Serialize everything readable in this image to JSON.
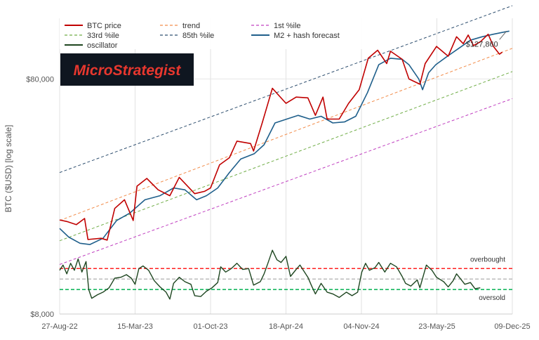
{
  "chart_data": {
    "type": "line",
    "title": "",
    "ylabel": "BTC ($USD) [log scale]",
    "xlabel": "",
    "y_scale": "log",
    "ylim": [
      8000,
      145000
    ],
    "xlim": [
      "2022-08-27",
      "2025-12-09"
    ],
    "x_ticks": [
      "27-Aug-22",
      "15-Mar-23",
      "01-Oct-23",
      "18-Apr-24",
      "04-Nov-24",
      "23-May-25",
      "09-Dec-25"
    ],
    "y_ticks": [
      {
        "value": 8000,
        "label": "$8,000"
      },
      {
        "value": 80000,
        "label": "$80,000"
      }
    ],
    "grid": "vertical",
    "legend_position": "top",
    "colors": {
      "btc_price": "#c00000",
      "trend": "#f28c4a",
      "p1": "#c040c0",
      "p33": "#70ad47",
      "p85": "#2f4f6f",
      "forecast": "#1f5f8b",
      "oscillator": "#1e4620",
      "overbought": "#ff2020",
      "oversold": "#00b050",
      "midline": "#bbbbbb"
    },
    "series": [
      {
        "name": "BTC price",
        "style": "solid",
        "points": [
          [
            "2022-08-27",
            20100
          ],
          [
            "2022-09-15",
            19800
          ],
          [
            "2022-10-10",
            19200
          ],
          [
            "2022-11-01",
            20400
          ],
          [
            "2022-11-10",
            16600
          ],
          [
            "2022-12-15",
            16800
          ],
          [
            "2022-12-31",
            16500
          ],
          [
            "2023-01-20",
            22500
          ],
          [
            "2023-02-15",
            24500
          ],
          [
            "2023-03-10",
            20000
          ],
          [
            "2023-03-20",
            28000
          ],
          [
            "2023-04-15",
            30200
          ],
          [
            "2023-05-15",
            27000
          ],
          [
            "2023-06-15",
            25500
          ],
          [
            "2023-07-10",
            30500
          ],
          [
            "2023-08-20",
            26000
          ],
          [
            "2023-09-15",
            26600
          ],
          [
            "2023-10-01",
            27500
          ],
          [
            "2023-10-25",
            34500
          ],
          [
            "2023-11-20",
            37000
          ],
          [
            "2023-12-10",
            43500
          ],
          [
            "2024-01-15",
            42500
          ],
          [
            "2024-01-23",
            39500
          ],
          [
            "2024-02-15",
            52000
          ],
          [
            "2024-03-13",
            73000
          ],
          [
            "2024-04-18",
            63000
          ],
          [
            "2024-05-15",
            67000
          ],
          [
            "2024-06-15",
            66500
          ],
          [
            "2024-07-05",
            56000
          ],
          [
            "2024-07-25",
            67000
          ],
          [
            "2024-08-05",
            54000
          ],
          [
            "2024-09-06",
            54000
          ],
          [
            "2024-10-01",
            63000
          ],
          [
            "2024-10-29",
            72000
          ],
          [
            "2024-11-22",
            98000
          ],
          [
            "2024-12-17",
            106000
          ],
          [
            "2025-01-10",
            93000
          ],
          [
            "2025-01-20",
            105000
          ],
          [
            "2025-02-20",
            97000
          ],
          [
            "2025-03-10",
            80000
          ],
          [
            "2025-04-08",
            76000
          ],
          [
            "2025-04-22",
            93000
          ],
          [
            "2025-05-22",
            110000
          ],
          [
            "2025-06-22",
            100000
          ],
          [
            "2025-07-14",
            121000
          ],
          [
            "2025-08-01",
            113000
          ],
          [
            "2025-08-14",
            123000
          ],
          [
            "2025-08-28",
            111000
          ],
          [
            "2025-09-15",
            115000
          ],
          [
            "2025-10-06",
            124000
          ],
          [
            "2025-10-20",
            110000
          ],
          [
            "2025-11-05",
            102000
          ],
          [
            "2025-11-12",
            104000
          ]
        ]
      },
      {
        "name": "trend",
        "style": "dashed",
        "points": [
          [
            "2022-08-27",
            20000
          ],
          [
            "2025-12-09",
            108000
          ]
        ]
      },
      {
        "name": "1st %ile",
        "style": "dashed",
        "points": [
          [
            "2022-08-27",
            13000
          ],
          [
            "2025-12-09",
            66000
          ]
        ]
      },
      {
        "name": "33rd %ile",
        "style": "dashed",
        "points": [
          [
            "2022-08-27",
            16400
          ],
          [
            "2025-12-09",
            86000
          ]
        ]
      },
      {
        "name": "85th %ile",
        "style": "dashed",
        "points": [
          [
            "2022-08-27",
            32000
          ],
          [
            "2025-12-09",
            164000
          ]
        ]
      },
      {
        "name": "M2 + hash forecast",
        "style": "solid",
        "points": [
          [
            "2022-08-27",
            18500
          ],
          [
            "2022-09-20",
            17000
          ],
          [
            "2022-10-20",
            16000
          ],
          [
            "2022-11-15",
            15800
          ],
          [
            "2022-12-20",
            16800
          ],
          [
            "2023-01-25",
            20000
          ],
          [
            "2023-03-01",
            21500
          ],
          [
            "2023-04-10",
            24500
          ],
          [
            "2023-05-20",
            25500
          ],
          [
            "2023-06-25",
            27500
          ],
          [
            "2023-07-25",
            27000
          ],
          [
            "2023-08-25",
            24500
          ],
          [
            "2023-09-20",
            25500
          ],
          [
            "2023-10-20",
            27500
          ],
          [
            "2023-11-20",
            32000
          ],
          [
            "2023-12-20",
            36500
          ],
          [
            "2024-01-25",
            38500
          ],
          [
            "2024-02-20",
            42000
          ],
          [
            "2024-03-20",
            52000
          ],
          [
            "2024-04-20",
            54000
          ],
          [
            "2024-05-20",
            56000
          ],
          [
            "2024-06-20",
            54000
          ],
          [
            "2024-07-20",
            55500
          ],
          [
            "2024-08-20",
            52000
          ],
          [
            "2024-09-20",
            52500
          ],
          [
            "2024-10-20",
            55500
          ],
          [
            "2024-11-20",
            70000
          ],
          [
            "2024-12-20",
            92000
          ],
          [
            "2025-01-20",
            98000
          ],
          [
            "2025-02-20",
            97000
          ],
          [
            "2025-03-10",
            92000
          ],
          [
            "2025-04-05",
            80000
          ],
          [
            "2025-04-15",
            72000
          ],
          [
            "2025-05-01",
            85000
          ],
          [
            "2025-05-20",
            92000
          ],
          [
            "2025-06-20",
            100000
          ],
          [
            "2025-07-20",
            108000
          ],
          [
            "2025-08-20",
            117000
          ],
          [
            "2025-09-20",
            121000
          ],
          [
            "2025-10-20",
            124000
          ],
          [
            "2025-11-20",
            127000
          ],
          [
            "2025-12-01",
            127860
          ]
        ]
      }
    ],
    "oscillator": {
      "name": "oscillator",
      "y_ticks": [
        -3,
        3
      ],
      "overbought_level": 1.2,
      "oversold_level": -1.2,
      "midline_level": 0,
      "ylim": [
        -4.0,
        5.0
      ],
      "overbought_label": "overbought",
      "oversold_label": "oversold",
      "points": [
        [
          "2022-08-27",
          1.0
        ],
        [
          "2022-09-05",
          1.6
        ],
        [
          "2022-09-15",
          0.6
        ],
        [
          "2022-09-25",
          1.8
        ],
        [
          "2022-10-05",
          1.0
        ],
        [
          "2022-10-15",
          2.3
        ],
        [
          "2022-10-25",
          0.8
        ],
        [
          "2022-11-05",
          2.0
        ],
        [
          "2022-11-12",
          -1.2
        ],
        [
          "2022-11-20",
          -2.2
        ],
        [
          "2022-12-05",
          -1.8
        ],
        [
          "2022-12-20",
          -1.5
        ],
        [
          "2023-01-05",
          -1.0
        ],
        [
          "2023-01-20",
          0.1
        ],
        [
          "2023-02-05",
          0.2
        ],
        [
          "2023-02-20",
          0.5
        ],
        [
          "2023-03-05",
          0.1
        ],
        [
          "2023-03-15",
          -0.6
        ],
        [
          "2023-03-25",
          1.2
        ],
        [
          "2023-04-05",
          1.5
        ],
        [
          "2023-04-20",
          1.0
        ],
        [
          "2023-05-05",
          -0.2
        ],
        [
          "2023-05-20",
          -0.9
        ],
        [
          "2023-06-05",
          -1.5
        ],
        [
          "2023-06-15",
          -2.3
        ],
        [
          "2023-06-25",
          -0.5
        ],
        [
          "2023-07-10",
          0.2
        ],
        [
          "2023-07-25",
          -0.3
        ],
        [
          "2023-08-10",
          -0.6
        ],
        [
          "2023-08-20",
          -1.9
        ],
        [
          "2023-09-05",
          -2.0
        ],
        [
          "2023-09-20",
          -1.4
        ],
        [
          "2023-10-05",
          -1.0
        ],
        [
          "2023-10-20",
          -0.4
        ],
        [
          "2023-10-28",
          1.4
        ],
        [
          "2023-11-10",
          0.8
        ],
        [
          "2023-11-25",
          1.2
        ],
        [
          "2023-12-10",
          1.8
        ],
        [
          "2023-12-25",
          1.1
        ],
        [
          "2024-01-10",
          1.2
        ],
        [
          "2024-01-23",
          -0.7
        ],
        [
          "2024-02-10",
          -0.3
        ],
        [
          "2024-02-20",
          0.6
        ],
        [
          "2024-03-01",
          1.8
        ],
        [
          "2024-03-13",
          3.3
        ],
        [
          "2024-03-25",
          2.2
        ],
        [
          "2024-04-05",
          1.9
        ],
        [
          "2024-04-18",
          2.6
        ],
        [
          "2024-04-30",
          0.3
        ],
        [
          "2024-05-15",
          1.1
        ],
        [
          "2024-05-25",
          1.6
        ],
        [
          "2024-06-15",
          0.2
        ],
        [
          "2024-06-25",
          -0.8
        ],
        [
          "2024-07-05",
          -1.7
        ],
        [
          "2024-07-20",
          -0.5
        ],
        [
          "2024-08-05",
          -1.5
        ],
        [
          "2024-08-20",
          -1.7
        ],
        [
          "2024-09-06",
          -2.1
        ],
        [
          "2024-09-25",
          -1.5
        ],
        [
          "2024-10-10",
          -1.9
        ],
        [
          "2024-10-25",
          -1.5
        ],
        [
          "2024-11-05",
          0.8
        ],
        [
          "2024-11-15",
          1.8
        ],
        [
          "2024-11-25",
          1.0
        ],
        [
          "2024-12-10",
          1.3
        ],
        [
          "2024-12-20",
          1.9
        ],
        [
          "2025-01-05",
          0.8
        ],
        [
          "2025-01-20",
          1.8
        ],
        [
          "2025-02-05",
          1.4
        ],
        [
          "2025-02-20",
          0.3
        ],
        [
          "2025-03-01",
          -0.5
        ],
        [
          "2025-03-15",
          -0.8
        ],
        [
          "2025-04-01",
          -0.1
        ],
        [
          "2025-04-08",
          -1.0
        ],
        [
          "2025-04-25",
          1.6
        ],
        [
          "2025-05-10",
          1.0
        ],
        [
          "2025-05-22",
          0.2
        ],
        [
          "2025-06-10",
          -0.3
        ],
        [
          "2025-06-22",
          -0.9
        ],
        [
          "2025-07-05",
          -0.2
        ],
        [
          "2025-07-14",
          0.6
        ],
        [
          "2025-07-25",
          0.0
        ],
        [
          "2025-08-05",
          -0.6
        ],
        [
          "2025-08-20",
          -0.4
        ],
        [
          "2025-09-01",
          -1.1
        ],
        [
          "2025-09-15",
          -1.0
        ]
      ]
    },
    "annotations": [
      {
        "text": "$127,860",
        "x": "2025-12-01",
        "y": 127860
      }
    ]
  },
  "logo": {
    "text": "MicroStrategist"
  }
}
